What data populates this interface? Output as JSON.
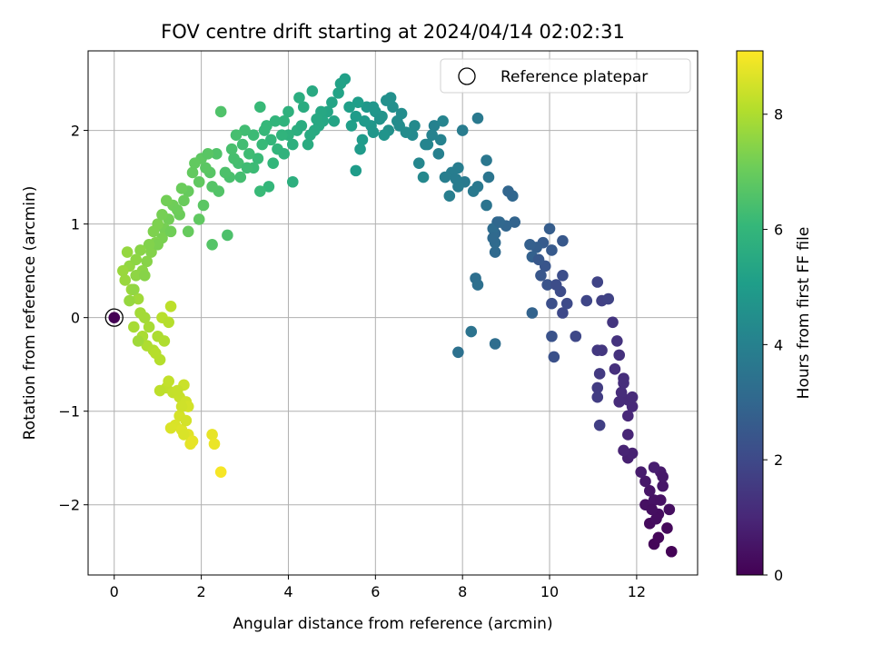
{
  "chart_data": {
    "type": "scatter",
    "title": "FOV centre drift starting at 2024/04/14 02:02:31",
    "xlabel": "Angular distance from reference (arcmin)",
    "ylabel": "Rotation from reference (arcmin)",
    "xlim": [
      -0.6,
      13.4
    ],
    "ylim": [
      -2.75,
      2.85
    ],
    "xticks": [
      0,
      2,
      4,
      6,
      8,
      10,
      12
    ],
    "yticks": [
      -2,
      -1,
      0,
      1,
      2
    ],
    "grid": true,
    "legend": {
      "position": "top-right",
      "entries": [
        "Reference platepar"
      ]
    },
    "colorbar": {
      "label": "Hours from first FF file",
      "min": 0,
      "max": 9.1,
      "ticks": [
        0,
        2,
        4,
        6,
        8
      ],
      "colormap": "viridis"
    },
    "reference_point": {
      "x": 0,
      "y": 0,
      "t": 0
    },
    "points": [
      [
        12.8,
        -2.5,
        0.05
      ],
      [
        12.4,
        -2.42,
        0.1
      ],
      [
        12.5,
        -2.35,
        0.15
      ],
      [
        12.7,
        -2.25,
        0.2
      ],
      [
        12.3,
        -2.2,
        0.25
      ],
      [
        12.5,
        -2.1,
        0.3
      ],
      [
        12.75,
        -2.05,
        0.35
      ],
      [
        12.2,
        -2.0,
        0.4
      ],
      [
        12.4,
        -1.95,
        0.45
      ],
      [
        12.3,
        -1.85,
        0.5
      ],
      [
        12.6,
        -1.8,
        0.55
      ],
      [
        12.2,
        -1.75,
        0.6
      ],
      [
        12.55,
        -1.65,
        0.65
      ],
      [
        12.1,
        -1.65,
        0.7
      ],
      [
        12.4,
        -1.6,
        0.75
      ],
      [
        11.8,
        -1.5,
        0.8
      ],
      [
        11.9,
        -1.45,
        0.85
      ],
      [
        11.7,
        -1.42,
        0.9
      ],
      [
        11.8,
        -1.25,
        0.95
      ],
      [
        11.8,
        -1.05,
        1.0
      ],
      [
        11.9,
        -0.95,
        1.05
      ],
      [
        11.8,
        -0.88,
        1.1
      ],
      [
        11.65,
        -0.8,
        1.15
      ],
      [
        11.7,
        -0.7,
        1.2
      ],
      [
        11.5,
        -0.55,
        1.25
      ],
      [
        11.6,
        -0.4,
        1.3
      ],
      [
        11.55,
        -0.25,
        1.35
      ],
      [
        11.45,
        -0.05,
        1.4
      ],
      [
        11.2,
        -0.35,
        1.45
      ],
      [
        11.1,
        -0.35,
        1.5
      ],
      [
        11.15,
        -0.6,
        1.55
      ],
      [
        11.1,
        -0.75,
        1.6
      ],
      [
        11.1,
        -0.85,
        1.65
      ],
      [
        11.15,
        -1.15,
        1.7
      ],
      [
        11.2,
        0.18,
        1.75
      ],
      [
        11.35,
        0.2,
        1.8
      ],
      [
        11.1,
        0.38,
        1.85
      ],
      [
        10.85,
        0.18,
        1.9
      ],
      [
        10.6,
        -0.2,
        1.95
      ],
      [
        10.3,
        0.05,
        2.0
      ],
      [
        10.4,
        0.15,
        2.05
      ],
      [
        10.25,
        0.28,
        2.1
      ],
      [
        10.3,
        0.45,
        2.15
      ],
      [
        10.05,
        0.15,
        2.2
      ],
      [
        10.1,
        -0.42,
        2.25
      ],
      [
        10.05,
        -0.2,
        2.3
      ],
      [
        9.95,
        0.35,
        2.35
      ],
      [
        9.9,
        0.55,
        2.4
      ],
      [
        9.8,
        0.45,
        2.45
      ],
      [
        10.3,
        0.82,
        2.5
      ],
      [
        10.05,
        0.72,
        2.55
      ],
      [
        9.85,
        0.8,
        2.6
      ],
      [
        10.0,
        0.95,
        2.65
      ],
      [
        9.7,
        0.75,
        2.7
      ],
      [
        9.55,
        0.78,
        2.75
      ],
      [
        9.6,
        0.65,
        2.8
      ],
      [
        9.6,
        0.05,
        2.85
      ],
      [
        9.2,
        1.02,
        2.9
      ],
      [
        9.0,
        0.98,
        2.95
      ],
      [
        8.8,
        1.02,
        3.0
      ],
      [
        8.75,
        0.9,
        3.05
      ],
      [
        8.75,
        0.7,
        3.1
      ],
      [
        8.75,
        0.8,
        3.15
      ],
      [
        8.7,
        0.95,
        3.2
      ],
      [
        8.75,
        -0.28,
        3.25
      ],
      [
        8.3,
        0.42,
        3.3
      ],
      [
        8.35,
        0.35,
        3.35
      ],
      [
        7.9,
        -0.37,
        3.4
      ],
      [
        8.2,
        -0.15,
        3.45
      ],
      [
        8.55,
        1.2,
        3.5
      ],
      [
        8.6,
        1.5,
        3.55
      ],
      [
        8.55,
        1.68,
        3.6
      ],
      [
        8.35,
        1.4,
        3.65
      ],
      [
        8.25,
        1.35,
        3.7
      ],
      [
        8.05,
        1.45,
        3.75
      ],
      [
        7.9,
        1.4,
        3.8
      ],
      [
        7.75,
        1.55,
        3.85
      ],
      [
        7.6,
        1.5,
        3.9
      ],
      [
        7.45,
        1.75,
        3.95
      ],
      [
        7.35,
        2.05,
        4.0
      ],
      [
        7.5,
        1.9,
        4.05
      ],
      [
        7.55,
        2.1,
        4.1
      ],
      [
        7.2,
        1.85,
        4.15
      ],
      [
        7.0,
        1.65,
        4.2
      ],
      [
        7.1,
        1.5,
        4.25
      ],
      [
        6.85,
        1.95,
        4.3
      ],
      [
        6.9,
        2.05,
        4.35
      ],
      [
        6.7,
        1.98,
        4.4
      ],
      [
        6.5,
        2.1,
        4.45
      ],
      [
        6.4,
        2.25,
        4.5
      ],
      [
        6.35,
        2.35,
        4.55
      ],
      [
        6.3,
        2.0,
        4.6
      ],
      [
        6.15,
        2.15,
        4.65
      ],
      [
        6.2,
        1.95,
        4.7
      ],
      [
        6.0,
        2.2,
        4.75
      ],
      [
        5.9,
        2.05,
        4.8
      ],
      [
        5.8,
        2.25,
        4.85
      ],
      [
        5.75,
        2.1,
        4.9
      ],
      [
        5.7,
        1.9,
        4.95
      ],
      [
        5.55,
        2.15,
        5.0
      ],
      [
        5.6,
        2.3,
        5.05
      ],
      [
        5.4,
        2.25,
        5.1
      ],
      [
        5.3,
        2.55,
        5.15
      ],
      [
        5.2,
        2.5,
        5.2
      ],
      [
        5.15,
        2.4,
        5.25
      ],
      [
        5.0,
        2.3,
        5.3
      ],
      [
        4.9,
        2.2,
        5.35
      ],
      [
        4.8,
        2.1,
        5.4
      ],
      [
        4.7,
        2.05,
        5.45
      ],
      [
        4.6,
        2.0,
        5.5
      ],
      [
        4.5,
        1.95,
        5.55
      ],
      [
        4.35,
        2.25,
        5.6
      ],
      [
        4.25,
        2.35,
        5.65
      ],
      [
        4.2,
        2.0,
        5.7
      ],
      [
        4.1,
        1.85,
        5.75
      ],
      [
        4.0,
        1.95,
        5.8
      ],
      [
        3.9,
        2.1,
        5.85
      ],
      [
        3.85,
        1.95,
        5.9
      ],
      [
        3.75,
        1.8,
        5.95
      ],
      [
        3.6,
        1.9,
        6.0
      ],
      [
        3.5,
        2.05,
        6.05
      ],
      [
        3.4,
        1.85,
        6.1
      ],
      [
        3.3,
        1.7,
        6.15
      ],
      [
        3.2,
        1.6,
        6.2
      ],
      [
        3.1,
        1.75,
        6.25
      ],
      [
        2.95,
        1.85,
        6.3
      ],
      [
        2.85,
        1.65,
        6.35
      ],
      [
        2.75,
        1.7,
        6.4
      ],
      [
        2.65,
        1.5,
        6.45
      ],
      [
        2.55,
        1.55,
        6.5
      ],
      [
        2.45,
        2.2,
        6.55
      ],
      [
        2.4,
        1.35,
        6.6
      ],
      [
        2.25,
        1.4,
        6.65
      ],
      [
        2.2,
        1.55,
        6.7
      ],
      [
        2.1,
        1.6,
        6.75
      ],
      [
        2.0,
        1.7,
        6.8
      ],
      [
        1.95,
        1.45,
        6.85
      ],
      [
        1.8,
        1.55,
        6.9
      ],
      [
        1.7,
        1.35,
        6.95
      ],
      [
        1.6,
        1.25,
        7.0
      ],
      [
        1.5,
        1.1,
        7.05
      ],
      [
        1.35,
        1.2,
        7.1
      ],
      [
        1.25,
        1.05,
        7.15
      ],
      [
        1.15,
        0.95,
        7.2
      ],
      [
        1.1,
        0.85,
        7.25
      ],
      [
        1.0,
        1.0,
        7.3
      ],
      [
        0.95,
        0.8,
        7.35
      ],
      [
        0.85,
        0.7,
        7.4
      ],
      [
        0.75,
        0.6,
        7.45
      ],
      [
        0.65,
        0.5,
        7.5
      ],
      [
        0.5,
        0.45,
        7.55
      ],
      [
        0.35,
        0.55,
        7.6
      ],
      [
        0.3,
        0.7,
        7.65
      ],
      [
        0.2,
        0.5,
        7.7
      ],
      [
        0.4,
        0.3,
        7.75
      ],
      [
        0.55,
        0.2,
        7.8
      ],
      [
        0.6,
        0.05,
        7.85
      ],
      [
        0.45,
        -0.1,
        7.9
      ],
      [
        0.65,
        -0.2,
        7.95
      ],
      [
        0.75,
        -0.3,
        8.0
      ],
      [
        0.9,
        -0.35,
        8.05
      ],
      [
        1.05,
        -0.45,
        8.1
      ],
      [
        1.1,
        0.0,
        8.15
      ],
      [
        1.3,
        0.12,
        8.2
      ],
      [
        1.2,
        -0.75,
        8.25
      ],
      [
        1.35,
        -0.8,
        8.3
      ],
      [
        1.5,
        -0.85,
        8.35
      ],
      [
        1.6,
        -0.72,
        8.4
      ],
      [
        1.65,
        -0.9,
        8.45
      ],
      [
        1.7,
        -0.95,
        8.5
      ],
      [
        1.5,
        -1.05,
        8.55
      ],
      [
        1.4,
        -1.15,
        8.6
      ],
      [
        1.55,
        -1.2,
        8.65
      ],
      [
        1.7,
        -1.25,
        8.7
      ],
      [
        1.75,
        -1.35,
        8.75
      ],
      [
        2.25,
        -1.25,
        8.8
      ],
      [
        2.3,
        -1.35,
        8.85
      ],
      [
        2.45,
        -1.65,
        9.0
      ],
      [
        11.9,
        -0.85,
        1.1
      ],
      [
        11.7,
        -0.65,
        1.2
      ],
      [
        12.45,
        -2.15,
        0.3
      ],
      [
        12.35,
        -2.05,
        0.35
      ],
      [
        12.6,
        -1.7,
        0.6
      ],
      [
        12.55,
        -1.95,
        0.42
      ],
      [
        11.6,
        -0.9,
        1.12
      ],
      [
        10.15,
        0.35,
        2.12
      ],
      [
        9.75,
        0.62,
        2.5
      ],
      [
        8.7,
        0.85,
        3.1
      ],
      [
        8.85,
        1.02,
        3.05
      ],
      [
        9.15,
        1.3,
        3.0
      ],
      [
        9.05,
        1.35,
        2.95
      ],
      [
        8.0,
        2.0,
        3.8
      ],
      [
        7.9,
        1.6,
        3.85
      ],
      [
        7.7,
        1.3,
        3.9
      ],
      [
        7.85,
        1.48,
        3.82
      ],
      [
        8.35,
        2.13,
        3.7
      ],
      [
        7.3,
        1.95,
        4.05
      ],
      [
        7.15,
        1.85,
        4.12
      ],
      [
        6.55,
        2.05,
        4.4
      ],
      [
        6.6,
        2.18,
        4.45
      ],
      [
        6.1,
        2.12,
        4.65
      ],
      [
        6.25,
        2.32,
        4.55
      ],
      [
        5.95,
        2.25,
        4.75
      ],
      [
        5.95,
        1.98,
        4.78
      ],
      [
        5.55,
        1.57,
        5.0
      ],
      [
        5.65,
        1.8,
        4.95
      ],
      [
        5.45,
        2.05,
        5.08
      ],
      [
        5.05,
        2.1,
        5.3
      ],
      [
        4.75,
        2.2,
        5.42
      ],
      [
        4.65,
        2.12,
        5.48
      ],
      [
        4.55,
        2.42,
        5.52
      ],
      [
        4.45,
        1.85,
        5.6
      ],
      [
        4.3,
        2.05,
        5.62
      ],
      [
        4.1,
        1.45,
        5.72
      ],
      [
        4.0,
        2.2,
        5.8
      ],
      [
        3.9,
        1.75,
        5.86
      ],
      [
        3.7,
        2.1,
        5.95
      ],
      [
        3.65,
        1.65,
        5.98
      ],
      [
        3.55,
        1.4,
        6.02
      ],
      [
        3.45,
        2.0,
        6.08
      ],
      [
        3.35,
        2.25,
        6.12
      ],
      [
        3.35,
        1.35,
        6.14
      ],
      [
        3.2,
        1.95,
        6.2
      ],
      [
        3.05,
        1.6,
        6.26
      ],
      [
        3.0,
        2.0,
        6.3
      ],
      [
        2.9,
        1.5,
        6.35
      ],
      [
        2.8,
        1.95,
        6.38
      ],
      [
        2.7,
        1.8,
        6.42
      ],
      [
        2.6,
        0.88,
        6.5
      ],
      [
        2.35,
        1.75,
        6.58
      ],
      [
        2.25,
        0.78,
        6.65
      ],
      [
        2.15,
        1.75,
        6.72
      ],
      [
        2.05,
        1.2,
        6.76
      ],
      [
        1.95,
        1.05,
        6.84
      ],
      [
        1.85,
        1.65,
        6.88
      ],
      [
        1.7,
        0.92,
        6.96
      ],
      [
        1.55,
        1.38,
        7.02
      ],
      [
        1.45,
        1.15,
        7.08
      ],
      [
        1.3,
        0.92,
        7.12
      ],
      [
        1.2,
        1.25,
        7.15
      ],
      [
        1.1,
        1.1,
        7.2
      ],
      [
        1.0,
        0.78,
        7.28
      ],
      [
        0.9,
        0.92,
        7.32
      ],
      [
        0.8,
        0.78,
        7.38
      ],
      [
        0.7,
        0.45,
        7.45
      ],
      [
        0.6,
        0.72,
        7.48
      ],
      [
        0.5,
        0.62,
        7.54
      ],
      [
        0.45,
        0.3,
        7.6
      ],
      [
        0.35,
        0.18,
        7.66
      ],
      [
        0.25,
        0.4,
        7.7
      ],
      [
        0.55,
        -0.25,
        7.8
      ],
      [
        0.7,
        0.0,
        7.84
      ],
      [
        0.8,
        -0.1,
        7.9
      ],
      [
        1.0,
        -0.2,
        7.98
      ],
      [
        1.15,
        -0.25,
        8.02
      ],
      [
        1.25,
        -0.05,
        8.1
      ],
      [
        0.95,
        -0.38,
        8.12
      ],
      [
        1.05,
        -0.78,
        8.22
      ],
      [
        1.25,
        -0.68,
        8.28
      ],
      [
        1.45,
        -0.78,
        8.32
      ],
      [
        1.55,
        -0.95,
        8.45
      ],
      [
        1.65,
        -1.1,
        8.52
      ],
      [
        1.6,
        -1.25,
        8.6
      ],
      [
        1.3,
        -1.18,
        8.62
      ],
      [
        1.8,
        -1.32,
        8.78
      ]
    ]
  }
}
